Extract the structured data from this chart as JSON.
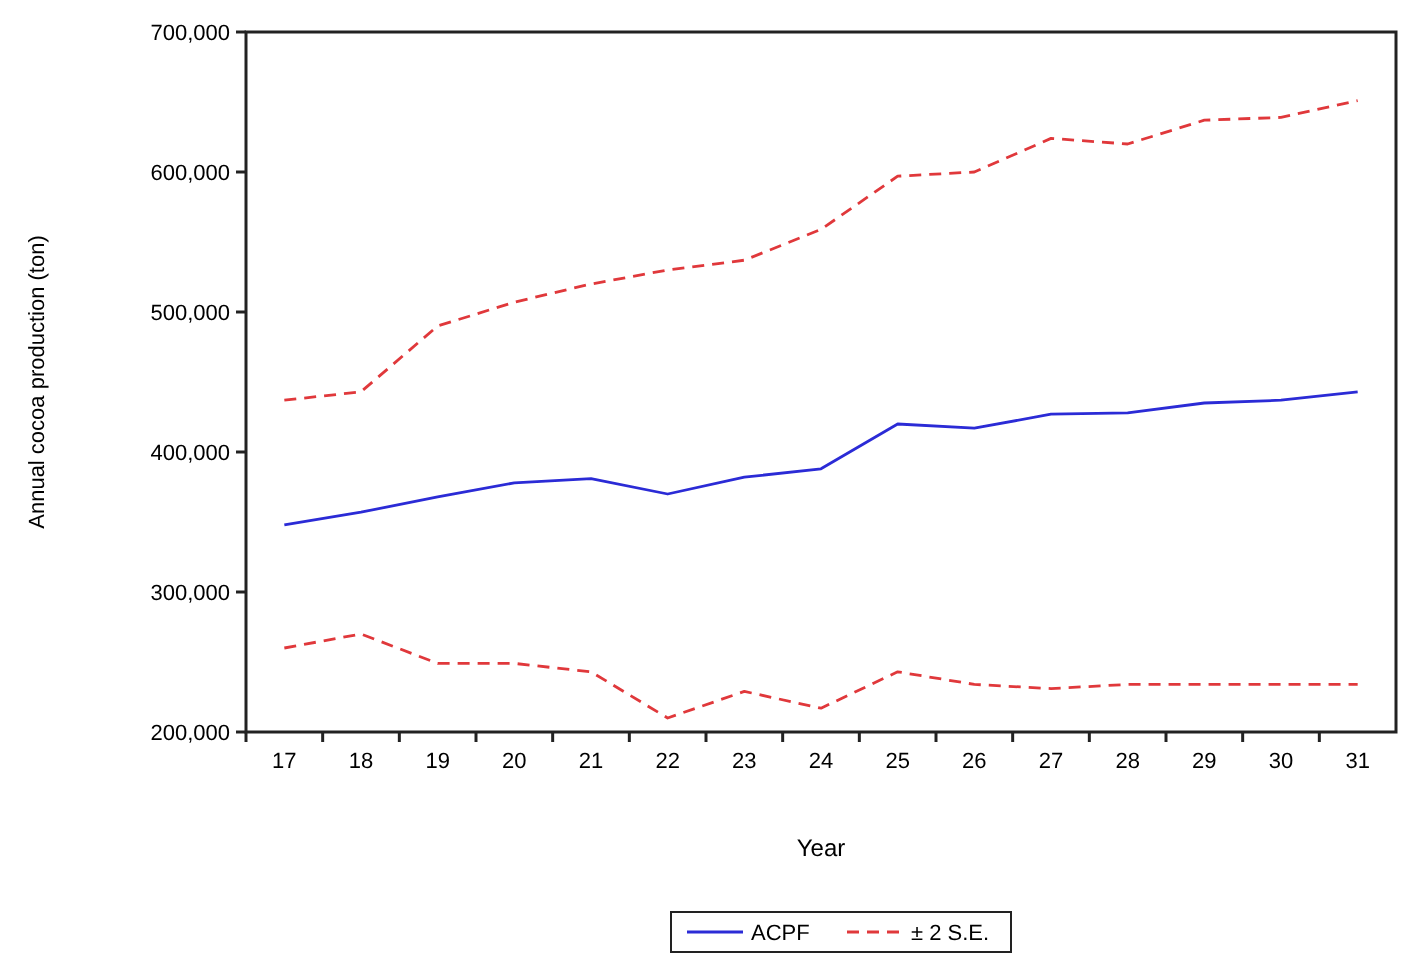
{
  "chart_data": {
    "type": "line",
    "xlabel": "Year",
    "ylabel": "Annual cocoa production (ton)",
    "categories": [
      "17",
      "18",
      "19",
      "20",
      "21",
      "22",
      "23",
      "24",
      "25",
      "26",
      "27",
      "28",
      "29",
      "30",
      "31"
    ],
    "ylim": [
      200000,
      700000
    ],
    "yticks": [
      {
        "value": 200000,
        "label": "200,000"
      },
      {
        "value": 300000,
        "label": "300,000"
      },
      {
        "value": 400000,
        "label": "400,000"
      },
      {
        "value": 500000,
        "label": "500,000"
      },
      {
        "value": 600000,
        "label": "600,000"
      },
      {
        "value": 700000,
        "label": "700,000"
      }
    ],
    "grid": false,
    "legend": "bottom",
    "marker": "none",
    "series": [
      {
        "name": "ACPF",
        "color": "#2b2bd6",
        "line_style": "solid",
        "values": [
          348000,
          357000,
          368000,
          378000,
          381000,
          370000,
          382000,
          388000,
          420000,
          417000,
          427000,
          428000,
          435000,
          437000,
          443000
        ]
      },
      {
        "name": "± 2 S.E.",
        "color": "#e0383b",
        "line_style": "dashed",
        "values": [
          437000,
          443000,
          490000,
          507000,
          520000,
          530000,
          537000,
          559000,
          597000,
          600000,
          624000,
          620000,
          637000,
          639000,
          651000
        ]
      },
      {
        "color": "#e0383b",
        "line_style": "dashed",
        "values": [
          260000,
          270000,
          249000,
          249000,
          243000,
          210000,
          229000,
          217000,
          243000,
          234000,
          231000,
          234000,
          234000,
          234000,
          234000
        ]
      }
    ]
  }
}
